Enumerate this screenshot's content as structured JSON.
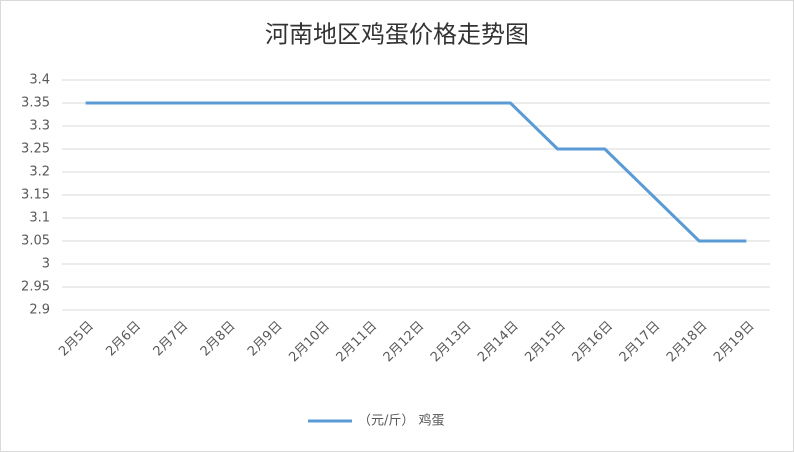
{
  "chart_data": {
    "type": "line",
    "title": "河南地区鸡蛋价格走势图",
    "categories": [
      "2月5日",
      "2月6日",
      "2月7日",
      "2月8日",
      "2月9日",
      "2月10日",
      "2月11日",
      "2月12日",
      "2月13日",
      "2月14日",
      "2月15日",
      "2月16日",
      "2月17日",
      "2月18日",
      "2月19日"
    ],
    "series": [
      {
        "name": "（元/斤） 鸡蛋",
        "color": "#5b9bd5",
        "values": [
          3.35,
          3.35,
          3.35,
          3.35,
          3.35,
          3.35,
          3.35,
          3.35,
          3.35,
          3.35,
          3.25,
          3.25,
          3.15,
          3.05,
          3.05
        ]
      }
    ],
    "ylim": [
      2.9,
      3.4
    ],
    "yticks": [
      2.9,
      2.95,
      3,
      3.05,
      3.1,
      3.15,
      3.2,
      3.25,
      3.3,
      3.35,
      3.4
    ],
    "grid": true,
    "legend": "bottom"
  }
}
